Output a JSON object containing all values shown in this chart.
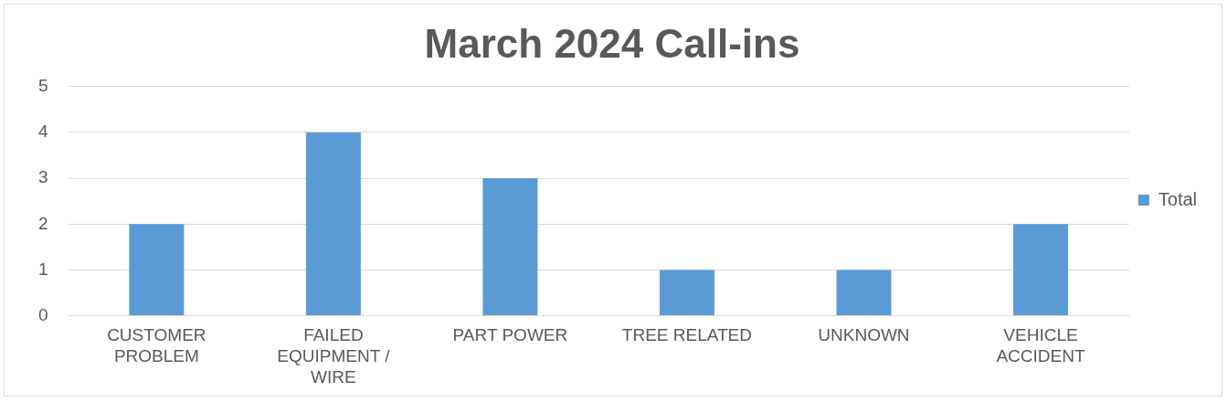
{
  "chart_data": {
    "type": "bar",
    "title": "March 2024 Call-ins",
    "categories": [
      "CUSTOMER PROBLEM",
      "FAILED EQUIPMENT / WIRE",
      "PART POWER",
      "TREE RELATED",
      "UNKNOWN",
      "VEHICLE ACCIDENT"
    ],
    "series": [
      {
        "name": "Total",
        "color": "#5b9bd5",
        "values": [
          2,
          4,
          3,
          1,
          1,
          2
        ]
      }
    ],
    "ylim": [
      0,
      5
    ],
    "yticks": [
      0,
      1,
      2,
      3,
      4,
      5
    ],
    "grid": "y",
    "legend": "right"
  }
}
